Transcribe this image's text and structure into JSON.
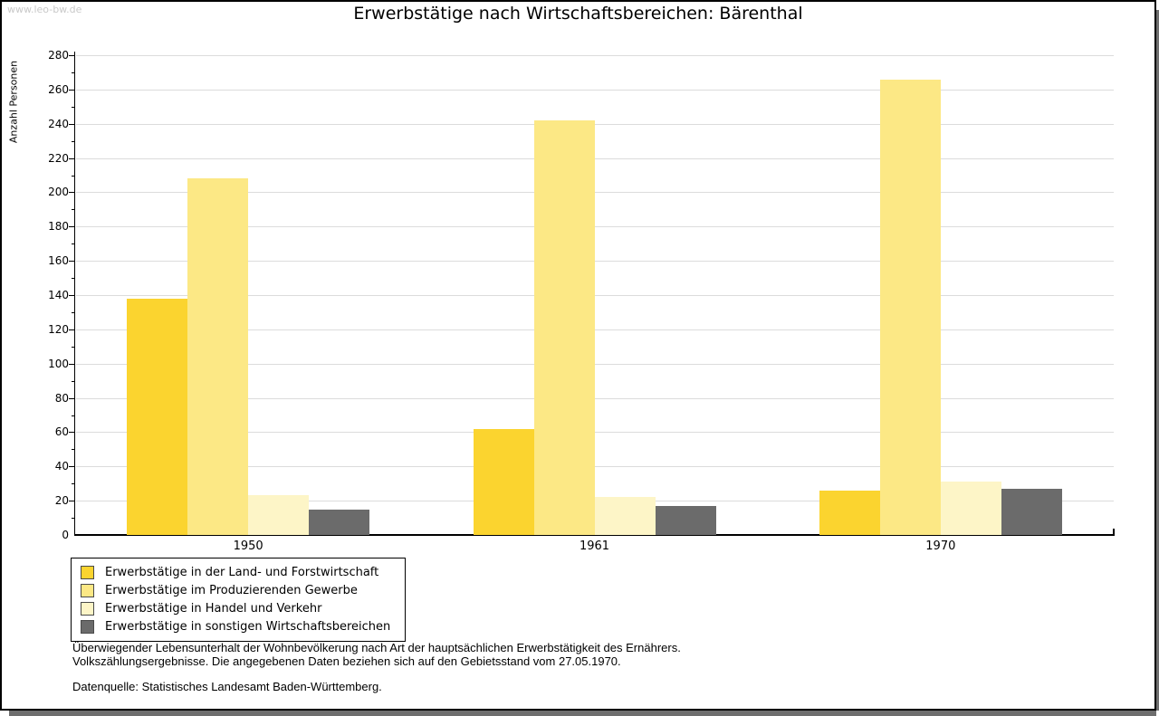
{
  "watermark": "www.leo-bw.de",
  "title": "Erwerbstätige nach Wirtschaftsbereichen: Bärenthal",
  "chart_data": {
    "type": "bar",
    "title": "Erwerbstätige nach Wirtschaftsbereichen: Bärenthal",
    "xlabel": "",
    "ylabel": "Anzahl Personen",
    "ylim": [
      0,
      280
    ],
    "ytick_step": 20,
    "minor_tick_step": 10,
    "grid": true,
    "legend_position": "bottom-left",
    "categories": [
      "1950",
      "1961",
      "1970"
    ],
    "series": [
      {
        "name": "Erwerbstätige in der Land- und Forstwirtschaft",
        "color": "#FBD42F",
        "values": [
          138,
          62,
          26
        ]
      },
      {
        "name": "Erwerbstätige im Produzierenden Gewerbe",
        "color": "#FCE885",
        "values": [
          208,
          242,
          266
        ]
      },
      {
        "name": "Erwerbstätige in Handel und Verkehr",
        "color": "#FDF5C7",
        "values": [
          23,
          22,
          31
        ]
      },
      {
        "name": "Erwerbstätige in sonstigen Wirtschaftsbereichen",
        "color": "#6B6B6B",
        "values": [
          15,
          17,
          27
        ]
      }
    ]
  },
  "colors": {
    "gridline": "#DCDCDC",
    "axis": "#000000",
    "watermark": "#C9C9C9",
    "frame_shadow": "#6E6E6E"
  },
  "footer": {
    "line1": "Überwiegender Lebensunterhalt der Wohnbevölkerung nach Art der hauptsächlichen Erwerbstätigkeit des Ernährers.",
    "line2": "Volkszählungsergebnisse. Die angegebenen Daten beziehen sich auf den Gebietsstand vom 27.05.1970.",
    "source": "Datenquelle: Statistisches Landesamt Baden-Württemberg."
  }
}
